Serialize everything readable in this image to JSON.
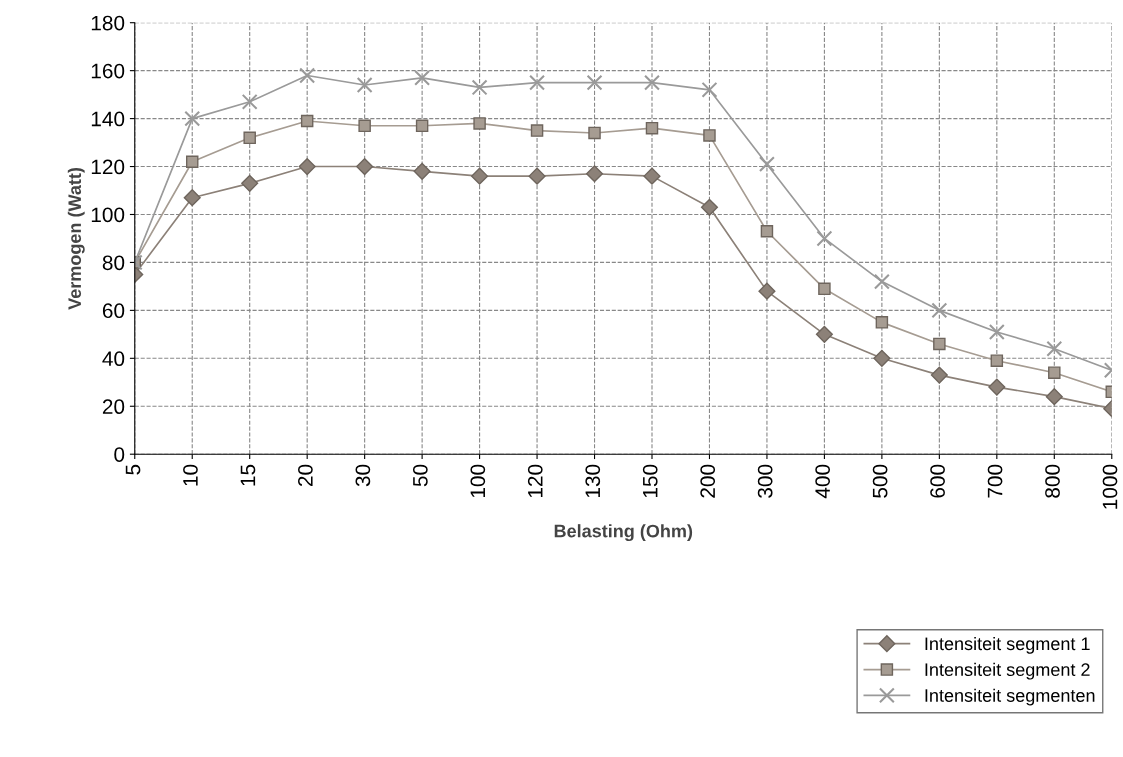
{
  "chart_data": {
    "type": "line",
    "xlabel": "Belasting (Ohm)",
    "ylabel": "Vermogen (Watt)",
    "categories": [
      "5",
      "10",
      "15",
      "20",
      "30",
      "50",
      "100",
      "120",
      "130",
      "150",
      "200",
      "300",
      "400",
      "500",
      "600",
      "700",
      "800",
      "1000"
    ],
    "series": [
      {
        "name": "Intensiteit segment 1",
        "color": "#8c8178",
        "marker": "diamond",
        "values": [
          75,
          107,
          113,
          120,
          120,
          118,
          116,
          116,
          117,
          116,
          103,
          68,
          50,
          40,
          33,
          28,
          24,
          19
        ]
      },
      {
        "name": "Intensiteit segment 2",
        "color": "#a69c92",
        "marker": "square",
        "values": [
          80,
          122,
          132,
          139,
          137,
          137,
          138,
          135,
          134,
          136,
          133,
          93,
          69,
          55,
          46,
          39,
          34,
          26
        ]
      },
      {
        "name": "Intensiteit segmenten",
        "color": "#9a9a9a",
        "marker": "cross",
        "values": [
          80,
          140,
          147,
          158,
          154,
          157,
          153,
          155,
          155,
          155,
          152,
          121,
          90,
          72,
          60,
          51,
          44,
          35
        ]
      }
    ],
    "ylim": [
      0,
      180
    ],
    "yticks": [
      0,
      20,
      40,
      60,
      80,
      100,
      120,
      140,
      160,
      180
    ],
    "grid": true,
    "legend": "bottom right",
    "line_style": "solid"
  }
}
